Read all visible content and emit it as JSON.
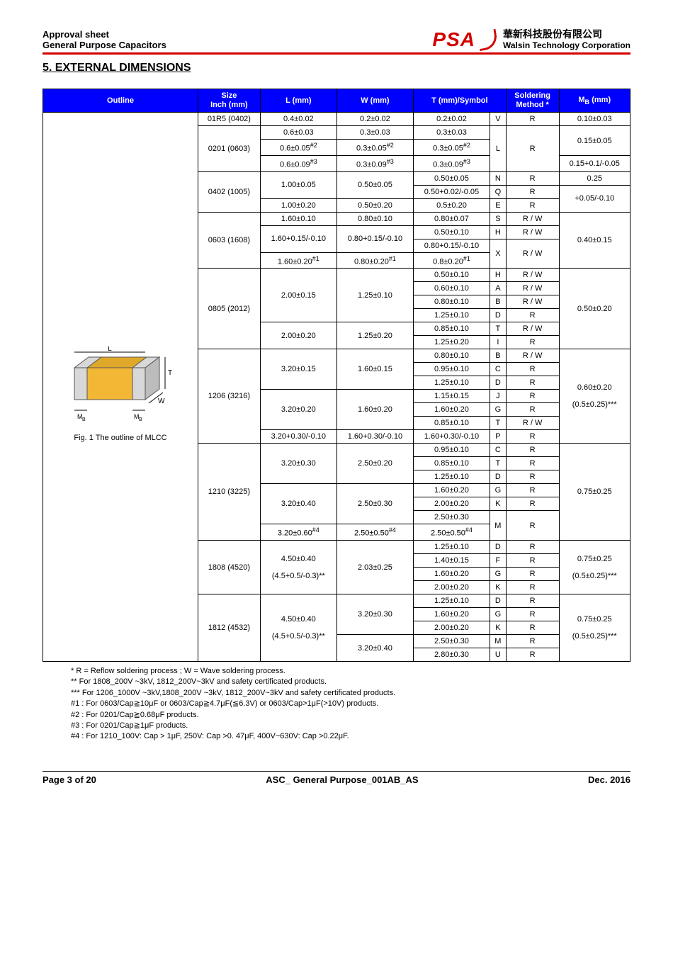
{
  "header": {
    "left_line1": "Approval sheet",
    "left_line2": "General Purpose Capacitors",
    "logo_text": "PSA",
    "company_cn": "華新科技股份有限公司",
    "company_en": "Walsin Technology Corporation"
  },
  "section_title": "5. EXTERNAL DIMENSIONS",
  "table_headers": {
    "outline": "Outline",
    "size": "Size\nInch (mm)",
    "l": "L (mm)",
    "w": "W (mm)",
    "t": "T (mm)/Symbol",
    "soldering": "Soldering\nMethod *",
    "mb": "M_B (mm)"
  },
  "outline_caption": "Fig. 1 The outline of MLCC",
  "diagram_labels": {
    "L": "L",
    "W": "W",
    "T": "T",
    "MB": "M_B"
  },
  "rows": [
    {
      "size": "01R5 (0402)",
      "L": "0.4±0.02",
      "W": "0.2±0.02",
      "T": "0.2±0.02",
      "sym": "V",
      "sold": "R",
      "MB": "0.10±0.03"
    },
    {
      "size": "0201 (0603)",
      "size_rs": 3,
      "L": "0.6±0.03",
      "W": "0.3±0.03",
      "T": "0.3±0.03",
      "sym": "L",
      "sym_rs": 3,
      "sold": "R",
      "sold_rs": 3,
      "MB": "0.15±0.05",
      "MB_rs": 2
    },
    {
      "L": "0.6±0.05^#2",
      "W": "0.3±0.05^#2",
      "T": "0.3±0.05^#2"
    },
    {
      "L": "0.6±0.09^#3",
      "W": "0.3±0.09^#3",
      "T": "0.3±0.09^#3",
      "MB": "0.15+0.1/-0.05"
    },
    {
      "size": "0402 (1005)",
      "size_rs": 3,
      "L": "1.00±0.05",
      "L_rs": 2,
      "W": "0.50±0.05",
      "W_rs": 2,
      "T": "0.50±0.05",
      "sym": "N",
      "sold": "R",
      "MB": "0.25"
    },
    {
      "T": "0.50+0.02/-0.05",
      "sym": "Q",
      "sold": "R",
      "MB": "+0.05/-0.10",
      "MB_rs": 2
    },
    {
      "L": "1.00±0.20",
      "W": "0.50±0.20",
      "T": "0.5±0.20",
      "sym": "E",
      "sold": "R"
    },
    {
      "size": "0603 (1608)",
      "size_rs": 4,
      "L": "1.60±0.10",
      "W": "0.80±0.10",
      "T": "0.80±0.07",
      "sym": "S",
      "sold": "R / W",
      "MB": "0.40±0.15",
      "MB_rs": 4
    },
    {
      "L": "1.60+0.15/-0.10",
      "L_rs": 2,
      "W": "0.80+0.15/-0.10",
      "W_rs": 2,
      "T": "0.50±0.10",
      "sym": "H",
      "sold": "R / W"
    },
    {
      "T": "0.80+0.15/-0.10",
      "sym": "X",
      "sym_rs": 2,
      "sold": "R / W",
      "sold_rs": 2
    },
    {
      "L": "1.60±0.20^#1",
      "W": "0.80±0.20^#1",
      "T": "0.8±0.20^#1"
    },
    {
      "size": "0805 (2012)",
      "size_rs": 6,
      "L": "2.00±0.15",
      "L_rs": 4,
      "W": "1.25±0.10",
      "W_rs": 4,
      "T": "0.50±0.10",
      "sym": "H",
      "sold": "R / W",
      "MB": "0.50±0.20",
      "MB_rs": 6
    },
    {
      "T": "0.60±0.10",
      "sym": "A",
      "sold": "R / W"
    },
    {
      "T": "0.80±0.10",
      "sym": "B",
      "sold": "R / W"
    },
    {
      "T": "1.25±0.10",
      "sym": "D",
      "sold": "R"
    },
    {
      "L": "2.00±0.20",
      "L_rs": 2,
      "W": "1.25±0.20",
      "W_rs": 2,
      "T": "0.85±0.10",
      "sym": "T",
      "sold": "R / W"
    },
    {
      "T": "1.25±0.20",
      "sym": "I",
      "sold": "R"
    },
    {
      "size": "1206 (3216)",
      "size_rs": 7,
      "L": "3.20±0.15",
      "L_rs": 3,
      "W": "1.60±0.15",
      "W_rs": 3,
      "T": "0.80±0.10",
      "sym": "B",
      "sold": "R / W",
      "MB": "0.60±0.20\n\n(0.5±0.25)***",
      "MB_rs": 7
    },
    {
      "T": "0.95±0.10",
      "sym": "C",
      "sold": "R"
    },
    {
      "T": "1.25±0.10",
      "sym": "D",
      "sold": "R"
    },
    {
      "L": "3.20±0.20",
      "L_rs": 3,
      "W": "1.60±0.20",
      "W_rs": 3,
      "T": "1.15±0.15",
      "sym": "J",
      "sold": "R"
    },
    {
      "T": "1.60±0.20",
      "sym": "G",
      "sold": "R"
    },
    {
      "T": "0.85±0.10",
      "sym": "T",
      "sold": "R / W"
    },
    {
      "L": "3.20+0.30/-0.10",
      "W": "1.60+0.30/-0.10",
      "T": "1.60+0.30/-0.10",
      "sym": "P",
      "sold": "R"
    },
    {
      "size": "1210 (3225)",
      "size_rs": 7,
      "L": "3.20±0.30",
      "L_rs": 3,
      "W": "2.50±0.20",
      "W_rs": 3,
      "T": "0.95±0.10",
      "sym": "C",
      "sold": "R",
      "MB": "0.75±0.25",
      "MB_rs": 7
    },
    {
      "T": "0.85±0.10",
      "sym": "T",
      "sold": "R"
    },
    {
      "T": "1.25±0.10",
      "sym": "D",
      "sold": "R"
    },
    {
      "L": "3.20±0.40",
      "L_rs": 3,
      "W": "2.50±0.30",
      "W_rs": 3,
      "T": "1.60±0.20",
      "sym": "G",
      "sold": "R"
    },
    {
      "T": "2.00±0.20",
      "sym": "K",
      "sold": "R"
    },
    {
      "T": "2.50±0.30",
      "sym": "M",
      "sym_rs": 2,
      "sold": "R",
      "sold_rs": 2
    },
    {
      "L": "3.20±0.60^#4",
      "W": "2.50±0.50^#4",
      "T": "2.50±0.50^#4"
    },
    {
      "size": "1808 (4520)",
      "size_rs": 4,
      "L": "4.50±0.40\n\n(4.5+0.5/-0.3)**",
      "L_rs": 4,
      "W": "2.03±0.25",
      "W_rs": 4,
      "T": "1.25±0.10",
      "sym": "D",
      "sold": "R",
      "MB": "0.75±0.25\n\n(0.5±0.25)***",
      "MB_rs": 4
    },
    {
      "T": "1.40±0.15",
      "sym": "F",
      "sold": "R"
    },
    {
      "T": "1.60±0.20",
      "sym": "G",
      "sold": "R"
    },
    {
      "T": "2.00±0.20",
      "sym": "K",
      "sold": "R"
    },
    {
      "size": "1812 (4532)",
      "size_rs": 5,
      "L": "4.50±0.40\n\n(4.5+0.5/-0.3)**",
      "L_rs": 5,
      "W": "3.20±0.30",
      "W_rs": 3,
      "T": "1.25±0.10",
      "sym": "D",
      "sold": "R",
      "MB": "0.75±0.25\n\n(0.5±0.25)***",
      "MB_rs": 5
    },
    {
      "T": "1.60±0.20",
      "sym": "G",
      "sold": "R"
    },
    {
      "T": "2.00±0.20",
      "sym": "K",
      "sold": "R"
    },
    {
      "W": "3.20±0.40",
      "W_rs": 2,
      "T": "2.50±0.30",
      "sym": "M",
      "sold": "R"
    },
    {
      "T": "2.80±0.30",
      "sym": "U",
      "sold": "R"
    }
  ],
  "footnotes": [
    "* R = Reflow soldering process ; W = Wave soldering process.",
    "** For 1808_200V ~3kV, 1812_200V~3kV and safety certificated products.",
    "*** For 1206_1000V ~3kV,1808_200V ~3kV, 1812_200V~3kV and safety certificated products.",
    "#1 : For 0603/Cap≧10μF or 0603/Cap≧4.7μF(≦6.3V) or 0603/Cap>1μF(>10V) products.",
    "#2 : For 0201/Cap≧0.68μF products.",
    "#3 : For 0201/Cap≧1μF products.",
    "#4 : For 1210_100V: Cap > 1μF, 250V: Cap >0. 47μF, 400V~630V: Cap >0.22μF."
  ],
  "footer": {
    "page": "Page 3 of 20",
    "doc": "ASC_ General Purpose_001AB_AS",
    "date": "Dec. 2016"
  },
  "colors": {
    "header_bg": "#0000ff",
    "header_fg": "#ffffff",
    "accent": "#d40000",
    "mlcc_body": "#d8d8d8",
    "mlcc_inner": "#f2b735"
  }
}
